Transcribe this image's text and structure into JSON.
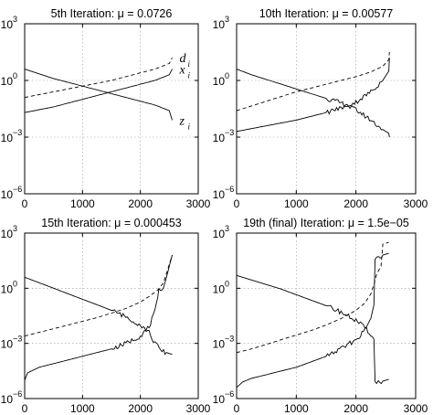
{
  "chart_data": [
    {
      "type": "line",
      "title": "5th Iteration: μ = 0.0726",
      "xlim": [
        0,
        3000
      ],
      "ylim": [
        -6,
        3
      ],
      "y_scale": "log10",
      "grid": true,
      "x_ticks": [
        0,
        1000,
        2000,
        3000
      ],
      "x_tick_labels": [
        "0",
        "1000",
        "2000",
        "3000"
      ],
      "y_ticks": [
        -6,
        -3,
        0,
        3
      ],
      "y_tick_labels": [
        "10",
        "10",
        "10",
        "10"
      ],
      "y_tick_exponents": [
        "−6",
        "−3",
        "0",
        "3"
      ],
      "series": [
        {
          "name": "d",
          "subscript": "i",
          "style": "dashed",
          "x": [
            0,
            250,
            500,
            750,
            1000,
            1250,
            1500,
            1750,
            2000,
            2250,
            2500,
            2550
          ],
          "log10_y": [
            -0.9,
            -0.75,
            -0.6,
            -0.45,
            -0.3,
            -0.15,
            0.0,
            0.2,
            0.4,
            0.6,
            0.9,
            1.2
          ]
        },
        {
          "name": "x",
          "subscript": "i",
          "style": "solid",
          "x": [
            0,
            250,
            500,
            750,
            1000,
            1250,
            1500,
            1750,
            2000,
            2250,
            2500,
            2550
          ],
          "log10_y": [
            -1.7,
            -1.55,
            -1.4,
            -1.2,
            -1.0,
            -0.8,
            -0.6,
            -0.4,
            -0.2,
            0.0,
            0.3,
            0.6
          ]
        },
        {
          "name": "z",
          "subscript": "i",
          "style": "solid",
          "x": [
            0,
            250,
            500,
            750,
            1000,
            1250,
            1500,
            1750,
            2000,
            2250,
            2500,
            2550
          ],
          "log10_y": [
            0.6,
            0.35,
            0.1,
            -0.1,
            -0.3,
            -0.5,
            -0.7,
            -0.9,
            -1.1,
            -1.3,
            -1.6,
            -2.1
          ]
        }
      ]
    },
    {
      "type": "line",
      "title": "10th Iteration: μ = 0.00577",
      "xlim": [
        0,
        3000
      ],
      "ylim": [
        -6,
        3
      ],
      "y_scale": "log10",
      "grid": true,
      "x_ticks": [
        0,
        1000,
        2000,
        3000
      ],
      "x_tick_labels": [
        "0",
        "1000",
        "2000",
        "3000"
      ],
      "y_ticks": [
        -6,
        -3,
        0,
        3
      ],
      "y_tick_labels": [
        "10",
        "10",
        "10",
        "10"
      ],
      "y_tick_exponents": [
        "−6",
        "−3",
        "0",
        "3"
      ],
      "series": [
        {
          "style": "dashed",
          "x": [
            0,
            250,
            500,
            750,
            1000,
            1250,
            1500,
            1750,
            2000,
            2250,
            2450,
            2550,
            2560
          ],
          "log10_y": [
            -1.6,
            -1.35,
            -1.1,
            -0.85,
            -0.6,
            -0.4,
            -0.2,
            0.0,
            0.2,
            0.45,
            0.75,
            1.1,
            1.5
          ]
        },
        {
          "style": "solid",
          "x": [
            0,
            250,
            500,
            750,
            1000,
            1250,
            1500,
            1750,
            2000,
            2250,
            2450,
            2550,
            2560
          ],
          "log10_y": [
            -2.7,
            -2.55,
            -2.4,
            -2.25,
            -2.1,
            -1.9,
            -1.7,
            -1.45,
            -1.15,
            -0.6,
            0.0,
            0.5,
            1.2
          ]
        },
        {
          "style": "solid",
          "x": [
            0,
            250,
            500,
            750,
            1000,
            1250,
            1500,
            1750,
            2000,
            2250,
            2450,
            2550,
            2560
          ],
          "log10_y": [
            0.6,
            0.3,
            0.05,
            -0.2,
            -0.45,
            -0.7,
            -0.95,
            -1.2,
            -1.55,
            -2.1,
            -2.6,
            -2.8,
            -3.0
          ]
        }
      ]
    },
    {
      "type": "line",
      "title": "15th Iteration: μ = 0.000453",
      "xlim": [
        0,
        3000
      ],
      "ylim": [
        -6,
        3
      ],
      "y_scale": "log10",
      "grid": true,
      "x_ticks": [
        0,
        1000,
        2000,
        3000
      ],
      "x_tick_labels": [
        "0",
        "1000",
        "2000",
        "3000"
      ],
      "y_ticks": [
        -6,
        -3,
        0,
        3
      ],
      "y_tick_labels": [
        "10",
        "10",
        "10",
        "10"
      ],
      "y_tick_exponents": [
        "−6",
        "−3",
        "0",
        "3"
      ],
      "series": [
        {
          "style": "dashed",
          "x": [
            0,
            250,
            500,
            750,
            1000,
            1250,
            1500,
            1750,
            2000,
            2150,
            2300,
            2400,
            2450,
            2500,
            2550
          ],
          "log10_y": [
            -2.6,
            -2.4,
            -2.2,
            -2.0,
            -1.8,
            -1.6,
            -1.35,
            -1.1,
            -0.75,
            -0.45,
            -0.1,
            0.3,
            0.8,
            1.3,
            1.8
          ]
        },
        {
          "style": "solid",
          "x": [
            0,
            50,
            250,
            500,
            750,
            1000,
            1250,
            1500,
            1750,
            2000,
            2150,
            2250,
            2300,
            2320,
            2400,
            2450,
            2500,
            2550
          ],
          "log10_y": [
            -5.0,
            -4.6,
            -4.3,
            -4.1,
            -3.9,
            -3.7,
            -3.5,
            -3.3,
            -3.0,
            -2.6,
            -2.1,
            -1.3,
            -0.6,
            0.0,
            0.0,
            0.6,
            1.2,
            1.8
          ]
        },
        {
          "style": "solid",
          "x": [
            0,
            250,
            500,
            750,
            1000,
            1250,
            1500,
            1750,
            2000,
            2150,
            2250,
            2320,
            2350,
            2450,
            2550
          ],
          "log10_y": [
            0.6,
            0.3,
            0.0,
            -0.3,
            -0.6,
            -0.9,
            -1.2,
            -1.55,
            -2.0,
            -2.4,
            -3.0,
            -3.2,
            -3.4,
            -3.5,
            -3.6
          ]
        }
      ]
    },
    {
      "type": "line",
      "title": "19th (final) Iteration: μ = 1.5e−05",
      "xlim": [
        0,
        3000
      ],
      "ylim": [
        -6,
        3
      ],
      "y_scale": "log10",
      "grid": true,
      "x_ticks": [
        0,
        1000,
        2000,
        3000
      ],
      "x_tick_labels": [
        "0",
        "1000",
        "2000",
        "3000"
      ],
      "y_ticks": [
        -6,
        -3,
        0,
        3
      ],
      "y_tick_labels": [
        "10",
        "10",
        "10",
        "10"
      ],
      "y_tick_exponents": [
        "−6",
        "−3",
        "0",
        "3"
      ],
      "series": [
        {
          "style": "dashed",
          "x": [
            0,
            250,
            500,
            750,
            1000,
            1250,
            1500,
            1750,
            2000,
            2150,
            2250,
            2300,
            2350,
            2420,
            2450,
            2550
          ],
          "log10_y": [
            -3.5,
            -3.3,
            -3.05,
            -2.8,
            -2.55,
            -2.3,
            -2.0,
            -1.65,
            -1.2,
            -0.8,
            -0.3,
            0.2,
            0.8,
            1.2,
            2.4,
            2.5
          ]
        },
        {
          "style": "solid",
          "x": [
            0,
            100,
            250,
            500,
            750,
            1000,
            1250,
            1500,
            1750,
            2000,
            2150,
            2250,
            2300,
            2320,
            2350,
            2400,
            2450,
            2550
          ],
          "log10_y": [
            -5.4,
            -5.1,
            -4.9,
            -4.7,
            -4.5,
            -4.3,
            -4.0,
            -3.7,
            -3.3,
            -2.8,
            -2.3,
            -1.6,
            -1.0,
            1.5,
            1.7,
            1.75,
            1.8,
            1.9
          ]
        },
        {
          "style": "solid",
          "x": [
            0,
            250,
            500,
            750,
            1000,
            1250,
            1500,
            1750,
            2000,
            2150,
            2250,
            2300,
            2320,
            2400,
            2450,
            2550
          ],
          "log10_y": [
            0.7,
            0.45,
            0.2,
            -0.05,
            -0.35,
            -0.65,
            -0.95,
            -1.3,
            -1.75,
            -2.15,
            -2.5,
            -2.8,
            -5.1,
            -5.1,
            -5.05,
            -4.95
          ]
        }
      ]
    }
  ]
}
